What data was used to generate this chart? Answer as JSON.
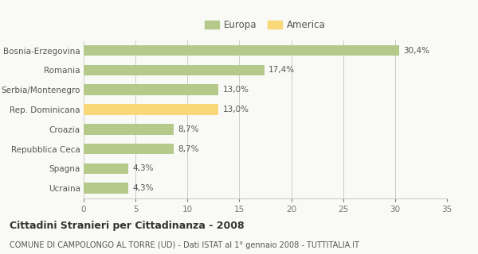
{
  "categories": [
    "Bosnia-Erzegovina",
    "Romania",
    "Serbia/Montenegro",
    "Rep. Dominicana",
    "Croazia",
    "Repubblica Ceca",
    "Spagna",
    "Ucraina"
  ],
  "values": [
    30.4,
    17.4,
    13.0,
    13.0,
    8.7,
    8.7,
    4.3,
    4.3
  ],
  "colors": [
    "#b5c98a",
    "#b5c98a",
    "#b5c98a",
    "#f9d87a",
    "#b5c98a",
    "#b5c98a",
    "#b5c98a",
    "#b5c98a"
  ],
  "labels": [
    "30,4%",
    "17,4%",
    "13,0%",
    "13,0%",
    "8,7%",
    "8,7%",
    "4,3%",
    "4,3%"
  ],
  "europa_color": "#b5c98a",
  "america_color": "#f9d87a",
  "xlim": [
    0,
    35
  ],
  "xticks": [
    0,
    5,
    10,
    15,
    20,
    25,
    30,
    35
  ],
  "title1": "Cittadini Stranieri per Cittadinanza - 2008",
  "title2": "COMUNE DI CAMPOLONGO AL TORRE (UD) - Dati ISTAT al 1° gennaio 2008 - TUTTITALIA.IT",
  "legend_europa": "Europa",
  "legend_america": "America",
  "background_color": "#f9f9f6",
  "bar_edge_color": "none",
  "grid_color": "#cccccc",
  "label_fontsize": 7.5,
  "tick_label_fontsize": 7.5,
  "title1_fontsize": 9,
  "title2_fontsize": 7,
  "bar_height": 0.55
}
